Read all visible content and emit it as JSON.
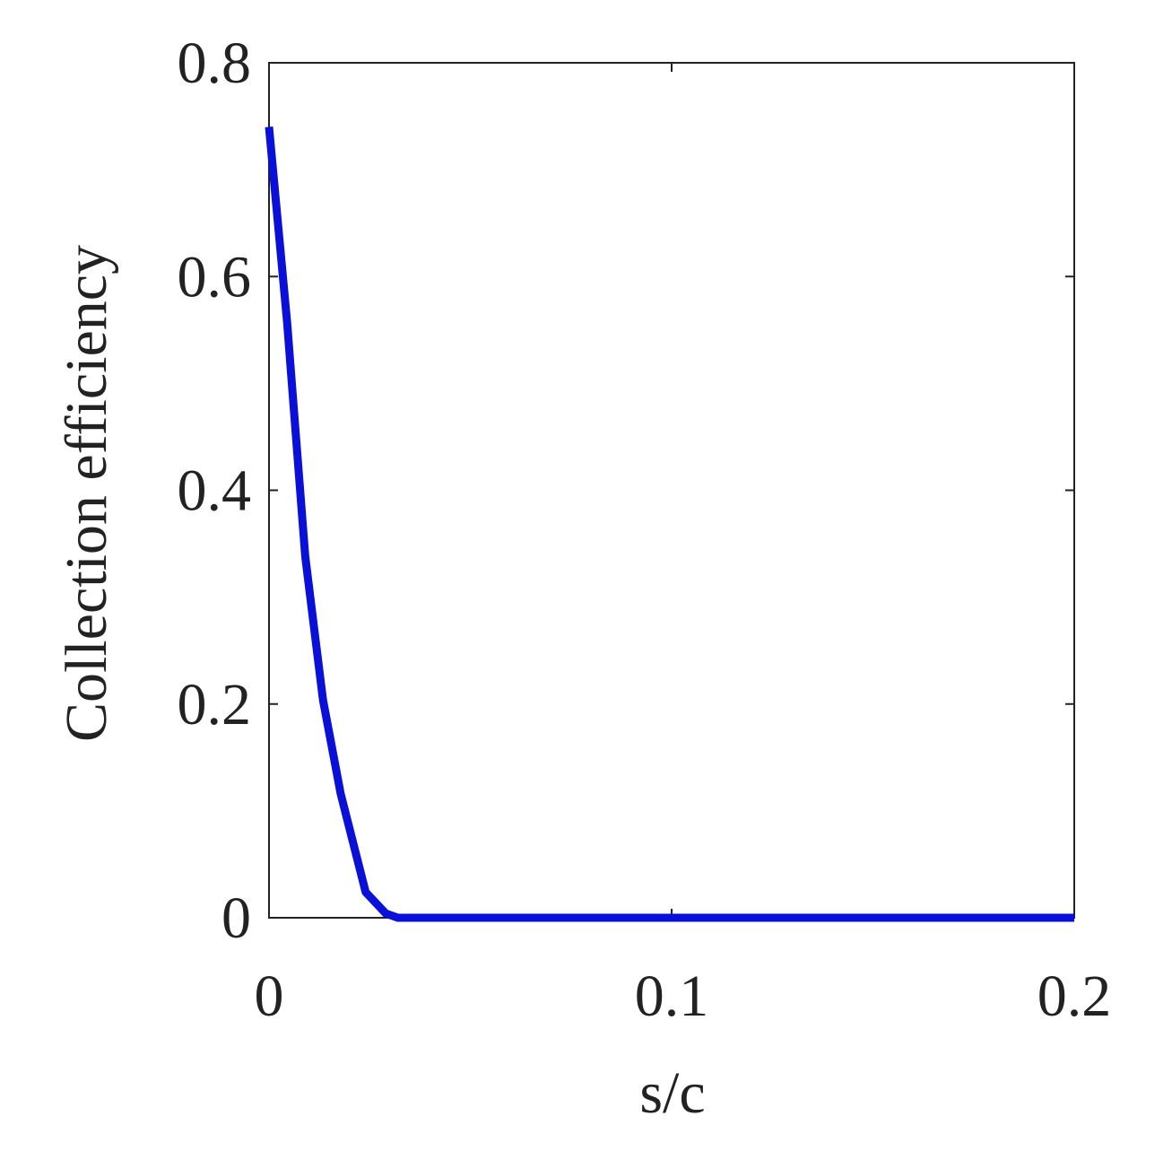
{
  "chart_data": {
    "type": "line",
    "x_label": "s/c",
    "y_label": "Collection efficiency",
    "x": [
      0,
      0.0045,
      0.009,
      0.0134,
      0.0178,
      0.024,
      0.029,
      0.032,
      0.05,
      0.1,
      0.15,
      0.2
    ],
    "series": [
      {
        "color": "#0a10d8",
        "values": [
          0.74,
          0.557,
          0.338,
          0.204,
          0.116,
          0.024,
          0.004,
          0,
          0,
          0,
          0,
          0
        ]
      }
    ],
    "xlim": [
      0,
      0.2
    ],
    "xticks": [
      0,
      0.1,
      0.2
    ],
    "ylim": [
      0,
      0.8
    ],
    "yticks": [
      0,
      0.2,
      0.4,
      0.6,
      0.8
    ]
  }
}
